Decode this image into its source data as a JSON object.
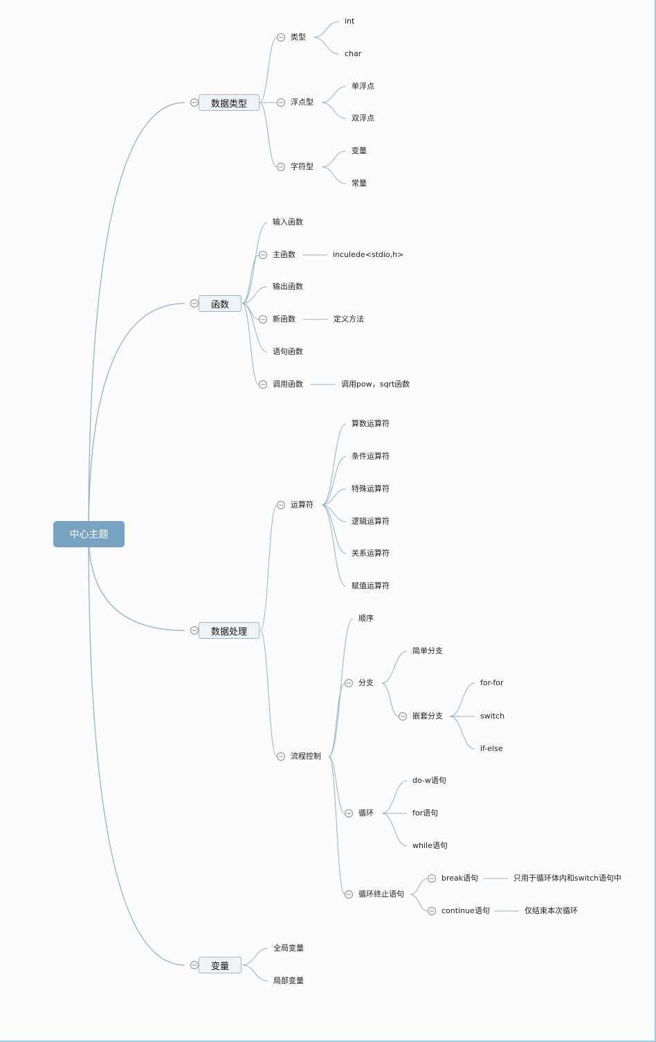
{
  "colors": {
    "line": "#8fb1ca",
    "root_fill": "#77a3c1",
    "topic_fill": "#eef3f7",
    "collapse_icon": "#999999"
  },
  "root": {
    "label": "中心主题",
    "children": [
      {
        "label": "数据类型",
        "children": [
          {
            "label": "类型",
            "children": [
              {
                "label": "int"
              },
              {
                "label": "char"
              }
            ]
          },
          {
            "label": "浮点型",
            "children": [
              {
                "label": "单浮点"
              },
              {
                "label": "双浮点"
              }
            ]
          },
          {
            "label": "字符型",
            "children": [
              {
                "label": "变量"
              },
              {
                "label": "常量"
              }
            ]
          }
        ]
      },
      {
        "label": "函数",
        "children": [
          {
            "label": "输入函数"
          },
          {
            "label": "主函数",
            "children": [
              {
                "label": "inculede<stdio,h>"
              }
            ]
          },
          {
            "label": "输出函数"
          },
          {
            "label": "新函数",
            "children": [
              {
                "label": "定义方法"
              }
            ]
          },
          {
            "label": "语句函数"
          },
          {
            "label": "调用函数",
            "children": [
              {
                "label": "调用pow，sqrt函数"
              }
            ]
          }
        ]
      },
      {
        "label": "数据处理",
        "children": [
          {
            "label": "运算符",
            "children": [
              {
                "label": "算数运算符"
              },
              {
                "label": "条件运算符"
              },
              {
                "label": "特殊运算符"
              },
              {
                "label": "逻辑运算符"
              },
              {
                "label": "关系运算符"
              },
              {
                "label": "赋值运算符"
              }
            ]
          },
          {
            "label": "流程控制",
            "children": [
              {
                "label": "顺序"
              },
              {
                "label": "分支",
                "children": [
                  {
                    "label": "简单分支"
                  },
                  {
                    "label": "嵌套分支",
                    "children": [
                      {
                        "label": "for-for"
                      },
                      {
                        "label": "switch"
                      },
                      {
                        "label": "if-else"
                      }
                    ]
                  }
                ]
              },
              {
                "label": "循环",
                "children": [
                  {
                    "label": "do-w语句"
                  },
                  {
                    "label": "for语句"
                  },
                  {
                    "label": "while语句"
                  }
                ]
              },
              {
                "label": "循环终止语句",
                "children": [
                  {
                    "label": "break语句",
                    "children": [
                      {
                        "label": "只用于循环体内和switch语句中"
                      }
                    ]
                  },
                  {
                    "label": "continue语句",
                    "children": [
                      {
                        "label": "仅结束本次循环"
                      }
                    ]
                  }
                ]
              }
            ]
          }
        ]
      },
      {
        "label": "变量",
        "children": [
          {
            "label": "全局变量"
          },
          {
            "label": "局部变量"
          }
        ]
      }
    ]
  }
}
